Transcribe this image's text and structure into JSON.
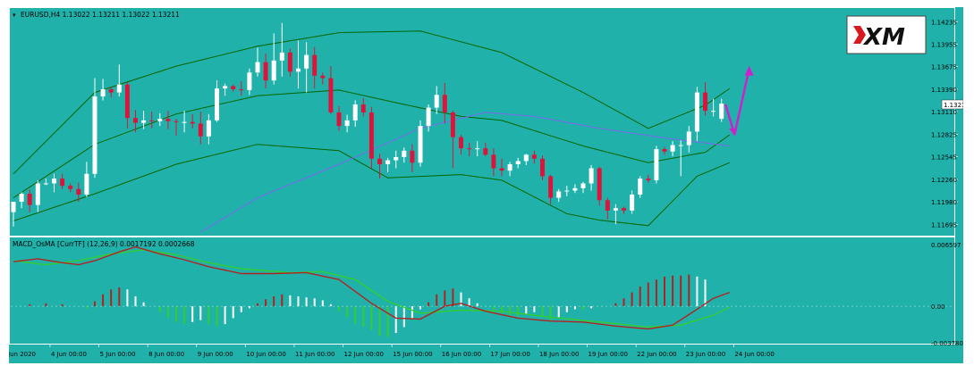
{
  "colors": {
    "background": "#20b2aa",
    "axis_text": "#000000",
    "grid": "#ffffff",
    "bull_candle": "#ffffff",
    "bear_candle": "#dc143c",
    "bollinger_band": "#006400",
    "moving_average": "#7b68ee",
    "macd_line": "#b22222",
    "signal_line": "#32cd32",
    "histogram_positive_up": "#b22222",
    "histogram_positive_down": "#ffffff",
    "histogram_negative_down": "#32cd32",
    "histogram_negative_up": "#ffffff",
    "forecast_arrow": "#cc22cc",
    "logo_red": "#d71920"
  },
  "logo": {
    "text": "XM"
  },
  "chart_data": [
    {
      "type": "candlestick",
      "title": "EURUSD,H4  1.13022 1.13211 1.13022 1.13211",
      "current_price": "1.13211",
      "ylim": [
        1.116,
        1.1433
      ],
      "y_ticks": [
        "1.14235",
        "1.13955",
        "1.13675",
        "1.13390",
        "1.13110",
        "1.12825",
        "1.12545",
        "1.12260",
        "1.11980",
        "1.11695"
      ],
      "x_ticks": [
        "3 Jun 2020",
        "4 Jun 00:00",
        "5 Jun 00:00",
        "8 Jun 00:00",
        "9 Jun 00:00",
        "10 Jun 00:00",
        "11 Jun 00:00",
        "12 Jun 00:00",
        "15 Jun 00:00",
        "16 Jun 00:00",
        "17 Jun 00:00",
        "18 Jun 00:00",
        "19 Jun 00:00",
        "22 Jun 00:00",
        "23 Jun 00:00",
        "24 Jun 00:00"
      ],
      "candles": [
        {
          "o": 1.1185,
          "h": 1.1197,
          "l": 1.1167,
          "c": 1.1198
        },
        {
          "o": 1.1198,
          "h": 1.121,
          "l": 1.119,
          "c": 1.1208
        },
        {
          "o": 1.1208,
          "h": 1.1213,
          "l": 1.1185,
          "c": 1.1194
        },
        {
          "o": 1.1194,
          "h": 1.1225,
          "l": 1.1185,
          "c": 1.1221
        },
        {
          "o": 1.1221,
          "h": 1.1227,
          "l": 1.1219,
          "c": 1.1221
        },
        {
          "o": 1.1221,
          "h": 1.1233,
          "l": 1.121,
          "c": 1.1227
        },
        {
          "o": 1.1227,
          "h": 1.1233,
          "l": 1.1214,
          "c": 1.1218
        },
        {
          "o": 1.1218,
          "h": 1.1221,
          "l": 1.121,
          "c": 1.1214
        },
        {
          "o": 1.1214,
          "h": 1.1222,
          "l": 1.1198,
          "c": 1.1207
        },
        {
          "o": 1.1207,
          "h": 1.1248,
          "l": 1.1204,
          "c": 1.1233
        },
        {
          "o": 1.1233,
          "h": 1.1353,
          "l": 1.1228,
          "c": 1.133
        },
        {
          "o": 1.133,
          "h": 1.1352,
          "l": 1.1325,
          "c": 1.1339
        },
        {
          "o": 1.1339,
          "h": 1.1342,
          "l": 1.1329,
          "c": 1.1335
        },
        {
          "o": 1.1335,
          "h": 1.137,
          "l": 1.133,
          "c": 1.1345
        },
        {
          "o": 1.1345,
          "h": 1.1348,
          "l": 1.129,
          "c": 1.1303
        },
        {
          "o": 1.1303,
          "h": 1.1313,
          "l": 1.1285,
          "c": 1.1297
        },
        {
          "o": 1.1297,
          "h": 1.1312,
          "l": 1.1289,
          "c": 1.13
        },
        {
          "o": 1.13,
          "h": 1.1311,
          "l": 1.129,
          "c": 1.1299
        },
        {
          "o": 1.1299,
          "h": 1.1309,
          "l": 1.1293,
          "c": 1.1302
        },
        {
          "o": 1.1302,
          "h": 1.1312,
          "l": 1.1289,
          "c": 1.1299
        },
        {
          "o": 1.1299,
          "h": 1.1302,
          "l": 1.1281,
          "c": 1.1298
        },
        {
          "o": 1.1298,
          "h": 1.1312,
          "l": 1.1285,
          "c": 1.1298
        },
        {
          "o": 1.1298,
          "h": 1.1308,
          "l": 1.129,
          "c": 1.1296
        },
        {
          "o": 1.1296,
          "h": 1.1311,
          "l": 1.127,
          "c": 1.128
        },
        {
          "o": 1.128,
          "h": 1.1308,
          "l": 1.127,
          "c": 1.13
        },
        {
          "o": 1.13,
          "h": 1.135,
          "l": 1.1298,
          "c": 1.134
        },
        {
          "o": 1.134,
          "h": 1.1346,
          "l": 1.1331,
          "c": 1.1343
        },
        {
          "o": 1.1343,
          "h": 1.1345,
          "l": 1.1336,
          "c": 1.1339
        },
        {
          "o": 1.1339,
          "h": 1.1349,
          "l": 1.1331,
          "c": 1.1338
        },
        {
          "o": 1.1338,
          "h": 1.1365,
          "l": 1.1332,
          "c": 1.136
        },
        {
          "o": 1.136,
          "h": 1.1391,
          "l": 1.1355,
          "c": 1.1373
        },
        {
          "o": 1.1373,
          "h": 1.1384,
          "l": 1.134,
          "c": 1.135
        },
        {
          "o": 1.135,
          "h": 1.1409,
          "l": 1.1345,
          "c": 1.1375
        },
        {
          "o": 1.1375,
          "h": 1.1422,
          "l": 1.1355,
          "c": 1.1385
        },
        {
          "o": 1.1385,
          "h": 1.139,
          "l": 1.1355,
          "c": 1.1361
        },
        {
          "o": 1.1361,
          "h": 1.14,
          "l": 1.134,
          "c": 1.1365
        },
        {
          "o": 1.1365,
          "h": 1.1398,
          "l": 1.1335,
          "c": 1.1382
        },
        {
          "o": 1.1382,
          "h": 1.1392,
          "l": 1.134,
          "c": 1.1356
        },
        {
          "o": 1.1356,
          "h": 1.136,
          "l": 1.1345,
          "c": 1.1353
        },
        {
          "o": 1.1353,
          "h": 1.1368,
          "l": 1.1308,
          "c": 1.131
        },
        {
          "o": 1.131,
          "h": 1.1318,
          "l": 1.1287,
          "c": 1.1293
        },
        {
          "o": 1.1293,
          "h": 1.1307,
          "l": 1.1285,
          "c": 1.13
        },
        {
          "o": 1.13,
          "h": 1.1325,
          "l": 1.1292,
          "c": 1.132
        },
        {
          "o": 1.132,
          "h": 1.1328,
          "l": 1.1305,
          "c": 1.131
        },
        {
          "o": 1.131,
          "h": 1.1317,
          "l": 1.124,
          "c": 1.1252
        },
        {
          "o": 1.1252,
          "h": 1.1258,
          "l": 1.1227,
          "c": 1.1245
        },
        {
          "o": 1.1245,
          "h": 1.1253,
          "l": 1.1235,
          "c": 1.125
        },
        {
          "o": 1.125,
          "h": 1.1262,
          "l": 1.124,
          "c": 1.1254
        },
        {
          "o": 1.1254,
          "h": 1.1266,
          "l": 1.1247,
          "c": 1.1262
        },
        {
          "o": 1.1262,
          "h": 1.127,
          "l": 1.1235,
          "c": 1.1247
        },
        {
          "o": 1.1247,
          "h": 1.13,
          "l": 1.1242,
          "c": 1.1293
        },
        {
          "o": 1.1293,
          "h": 1.132,
          "l": 1.1286,
          "c": 1.1316
        },
        {
          "o": 1.1316,
          "h": 1.1343,
          "l": 1.1308,
          "c": 1.1332
        },
        {
          "o": 1.1332,
          "h": 1.1347,
          "l": 1.1296,
          "c": 1.131
        },
        {
          "o": 1.131,
          "h": 1.1312,
          "l": 1.124,
          "c": 1.1279
        },
        {
          "o": 1.1279,
          "h": 1.1282,
          "l": 1.1257,
          "c": 1.1265
        },
        {
          "o": 1.1265,
          "h": 1.1272,
          "l": 1.1255,
          "c": 1.1264
        },
        {
          "o": 1.1264,
          "h": 1.1274,
          "l": 1.1255,
          "c": 1.1265
        },
        {
          "o": 1.1265,
          "h": 1.1272,
          "l": 1.1255,
          "c": 1.1257
        },
        {
          "o": 1.1257,
          "h": 1.1265,
          "l": 1.123,
          "c": 1.124
        },
        {
          "o": 1.124,
          "h": 1.1252,
          "l": 1.123,
          "c": 1.1237
        },
        {
          "o": 1.1237,
          "h": 1.1248,
          "l": 1.123,
          "c": 1.1245
        },
        {
          "o": 1.1245,
          "h": 1.1253,
          "l": 1.124,
          "c": 1.1249
        },
        {
          "o": 1.1249,
          "h": 1.1258,
          "l": 1.1244,
          "c": 1.1257
        },
        {
          "o": 1.1257,
          "h": 1.1262,
          "l": 1.1246,
          "c": 1.1252
        },
        {
          "o": 1.1252,
          "h": 1.1256,
          "l": 1.1225,
          "c": 1.123
        },
        {
          "o": 1.123,
          "h": 1.1232,
          "l": 1.1195,
          "c": 1.1203
        },
        {
          "o": 1.1203,
          "h": 1.1214,
          "l": 1.1198,
          "c": 1.1211
        },
        {
          "o": 1.1211,
          "h": 1.1218,
          "l": 1.1205,
          "c": 1.1212
        },
        {
          "o": 1.1212,
          "h": 1.122,
          "l": 1.1209,
          "c": 1.1215
        },
        {
          "o": 1.1215,
          "h": 1.1223,
          "l": 1.1209,
          "c": 1.1221
        },
        {
          "o": 1.1221,
          "h": 1.1244,
          "l": 1.1212,
          "c": 1.124
        },
        {
          "o": 1.124,
          "h": 1.1242,
          "l": 1.1193,
          "c": 1.12
        },
        {
          "o": 1.12,
          "h": 1.1203,
          "l": 1.1176,
          "c": 1.1187
        },
        {
          "o": 1.1187,
          "h": 1.1195,
          "l": 1.117,
          "c": 1.119
        },
        {
          "o": 1.119,
          "h": 1.1192,
          "l": 1.1183,
          "c": 1.1187
        },
        {
          "o": 1.1187,
          "h": 1.1212,
          "l": 1.1183,
          "c": 1.1207
        },
        {
          "o": 1.1207,
          "h": 1.123,
          "l": 1.1203,
          "c": 1.1227
        },
        {
          "o": 1.1227,
          "h": 1.1232,
          "l": 1.1222,
          "c": 1.1225
        },
        {
          "o": 1.1225,
          "h": 1.1268,
          "l": 1.1221,
          "c": 1.1264
        },
        {
          "o": 1.1264,
          "h": 1.1267,
          "l": 1.1257,
          "c": 1.1261
        },
        {
          "o": 1.1261,
          "h": 1.1274,
          "l": 1.1255,
          "c": 1.1269
        },
        {
          "o": 1.1269,
          "h": 1.1275,
          "l": 1.123,
          "c": 1.1269
        },
        {
          "o": 1.1269,
          "h": 1.1293,
          "l": 1.126,
          "c": 1.1286
        },
        {
          "o": 1.1286,
          "h": 1.1342,
          "l": 1.1274,
          "c": 1.1335
        },
        {
          "o": 1.1335,
          "h": 1.1348,
          "l": 1.1306,
          "c": 1.1312
        },
        {
          "o": 1.1312,
          "h": 1.1327,
          "l": 1.1305,
          "c": 1.1312
        },
        {
          "o": 1.1302,
          "h": 1.1327,
          "l": 1.1298,
          "c": 1.1321
        }
      ],
      "bollinger_upper": [
        [
          0,
          1.1233
        ],
        [
          10,
          1.1335
        ],
        [
          20,
          1.1368
        ],
        [
          30,
          1.1393
        ],
        [
          40,
          1.141
        ],
        [
          50,
          1.1412
        ],
        [
          60,
          1.1385
        ],
        [
          70,
          1.1335
        ],
        [
          78,
          1.129
        ],
        [
          85,
          1.1319
        ],
        [
          88,
          1.134
        ]
      ],
      "bollinger_lower": [
        [
          0,
          1.1174
        ],
        [
          10,
          1.1208
        ],
        [
          20,
          1.1245
        ],
        [
          30,
          1.127
        ],
        [
          40,
          1.1262
        ],
        [
          46,
          1.1228
        ],
        [
          55,
          1.1232
        ],
        [
          60,
          1.1225
        ],
        [
          68,
          1.1183
        ],
        [
          72,
          1.1175
        ],
        [
          78,
          1.1168
        ],
        [
          84,
          1.123
        ],
        [
          88,
          1.1247
        ]
      ],
      "bollinger_mid": [
        [
          0,
          1.1203
        ],
        [
          10,
          1.127
        ],
        [
          20,
          1.1308
        ],
        [
          30,
          1.1331
        ],
        [
          40,
          1.1338
        ],
        [
          48,
          1.132
        ],
        [
          55,
          1.1305
        ],
        [
          60,
          1.13
        ],
        [
          70,
          1.1268
        ],
        [
          78,
          1.1247
        ],
        [
          85,
          1.126
        ],
        [
          88,
          1.1282
        ]
      ],
      "moving_average": [
        [
          23,
          1.116
        ],
        [
          30,
          1.1203
        ],
        [
          40,
          1.1245
        ],
        [
          50,
          1.129
        ],
        [
          58,
          1.131
        ],
        [
          64,
          1.1305
        ],
        [
          72,
          1.129
        ],
        [
          80,
          1.1278
        ],
        [
          88,
          1.1268
        ]
      ],
      "forecast_arrow": {
        "start_index": 87.5,
        "start_price": 1.132,
        "low_index": 88.6,
        "low_price": 1.1282,
        "end_index": 90.4,
        "end_price": 1.1365
      }
    },
    {
      "type": "macd",
      "title": "MACD_OsMA [CurrTF] (12,26,9) 0.0017192 0.0002668",
      "ylim": [
        -0.00378,
        0.006597
      ],
      "y_ticks": [
        "0.006597",
        "0.00",
        "-0.003780"
      ],
      "histogram": [
        0,
        0,
        0.0002,
        0,
        0.0003,
        0,
        0.0002,
        0,
        0,
        -0.0002,
        0.0005,
        0.0012,
        0.0017,
        0.0019,
        0.0017,
        0.001,
        0.0004,
        0,
        -0.0006,
        -0.0012,
        -0.0016,
        -0.0018,
        -0.0016,
        -0.0014,
        -0.0018,
        -0.002,
        -0.0018,
        -0.0012,
        -0.0006,
        -0.0002,
        0.0003,
        0.0007,
        0.001,
        0.0012,
        0.0011,
        0.001,
        0.0009,
        0.0008,
        0.0006,
        0.0002,
        -0.0005,
        -0.0011,
        -0.0018,
        -0.0021,
        -0.0024,
        -0.003,
        -0.0031,
        -0.0027,
        -0.0021,
        -0.0012,
        -0.0003,
        0.0004,
        0.0012,
        0.0016,
        0.0018,
        0.0014,
        0.0008,
        0.0003,
        0,
        -0.0004,
        -0.0007,
        -0.0009,
        -0.001,
        -0.0008,
        -0.0006,
        -0.001,
        -0.0014,
        -0.0011,
        -0.0006,
        -0.0003,
        -0.0003,
        -0.0002,
        0,
        0,
        0.0003,
        0.0008,
        0.0014,
        0.002,
        0.0024,
        0.0027,
        0.003,
        0.0031,
        0.0031,
        0.0032,
        0.003,
        0.0027
      ],
      "macd_line": [
        [
          0,
          0.0045
        ],
        [
          3,
          0.0048
        ],
        [
          6,
          0.0044
        ],
        [
          8,
          0.0042
        ],
        [
          10,
          0.0046
        ],
        [
          13,
          0.0055
        ],
        [
          15,
          0.006
        ],
        [
          18,
          0.0053
        ],
        [
          21,
          0.0047
        ],
        [
          24,
          0.004
        ],
        [
          28,
          0.0033
        ],
        [
          32,
          0.0033
        ],
        [
          36,
          0.0034
        ],
        [
          40,
          0.0027
        ],
        [
          44,
          0.0003
        ],
        [
          47,
          -0.0012
        ],
        [
          50,
          -0.0013
        ],
        [
          53,
          0
        ],
        [
          55,
          0.0003
        ],
        [
          58,
          -0.0005
        ],
        [
          62,
          -0.0012
        ],
        [
          66,
          -0.0015
        ],
        [
          70,
          -0.0016
        ],
        [
          74,
          -0.002
        ],
        [
          78,
          -0.0023
        ],
        [
          81,
          -0.0019
        ],
        [
          84,
          -0.0003
        ],
        [
          86,
          0.0008
        ],
        [
          88,
          0.0014
        ]
      ],
      "signal_line": [
        [
          0,
          0.0046
        ],
        [
          4,
          0.0042
        ],
        [
          8,
          0.0046
        ],
        [
          12,
          0.0053
        ],
        [
          16,
          0.0057
        ],
        [
          20,
          0.0052
        ],
        [
          24,
          0.0044
        ],
        [
          28,
          0.0038
        ],
        [
          34,
          0.0034
        ],
        [
          38,
          0.0035
        ],
        [
          42,
          0.0027
        ],
        [
          46,
          0.0005
        ],
        [
          50,
          -0.0007
        ],
        [
          55,
          -0.0004
        ],
        [
          60,
          -0.0005
        ],
        [
          66,
          -0.0011
        ],
        [
          72,
          -0.0016
        ],
        [
          78,
          -0.0021
        ],
        [
          82,
          -0.0019
        ],
        [
          86,
          -0.0009
        ],
        [
          88,
          -0.0001
        ]
      ]
    }
  ]
}
